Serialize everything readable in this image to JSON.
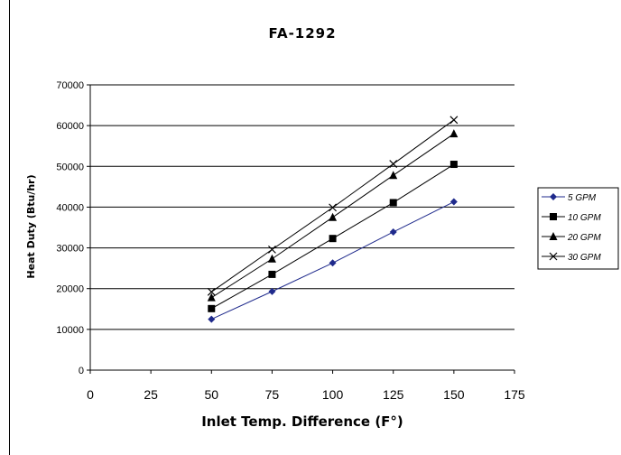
{
  "chart_data": {
    "type": "line",
    "title": "FA-1292",
    "xlabel": "Inlet Temp. Difference (F°)",
    "ylabel": "Heat Duty (Btu/hr)",
    "xlim": [
      0,
      175
    ],
    "ylim": [
      0,
      70000
    ],
    "xticks": [
      "0",
      "25",
      "50",
      "75",
      "100",
      "125",
      "150",
      "175"
    ],
    "yticks": [
      "0",
      "10000",
      "20000",
      "30000",
      "40000",
      "50000",
      "60000",
      "70000"
    ],
    "grid": "horizontal",
    "legend_position": "right",
    "x": [
      50,
      75,
      100,
      125,
      150
    ],
    "series": [
      {
        "name": "5 GPM",
        "marker": "diamond",
        "color": "#1f2a8c",
        "values": [
          12500,
          19300,
          26300,
          33900,
          41300
        ]
      },
      {
        "name": "10 GPM",
        "marker": "square",
        "color": "#000000",
        "values": [
          15100,
          23500,
          32300,
          41100,
          50500
        ]
      },
      {
        "name": "20 GPM",
        "marker": "triangle",
        "color": "#000000",
        "values": [
          17800,
          27300,
          37500,
          47800,
          58000
        ]
      },
      {
        "name": "30 GPM",
        "marker": "x",
        "color": "#000000",
        "values": [
          19200,
          29600,
          39900,
          50600,
          61400
        ]
      }
    ]
  }
}
